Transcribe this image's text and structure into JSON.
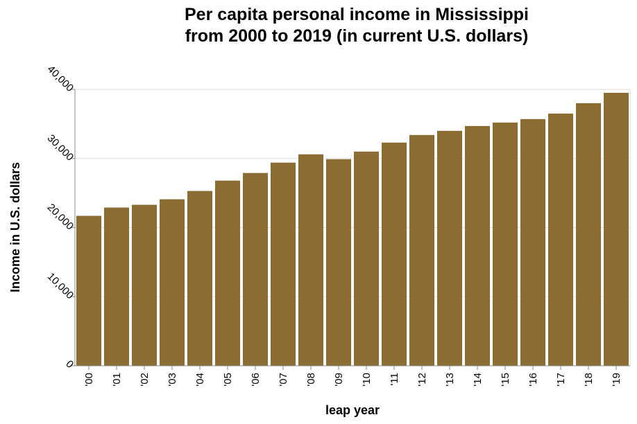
{
  "chart_data": {
    "type": "bar",
    "title": [
      "Per capita personal income in Mississippi",
      "from 2000 to 2019 (in current U.S. dollars)"
    ],
    "xlabel": "leap year",
    "ylabel": "Income in U.S. dollars",
    "categories": [
      "'00",
      "'01",
      "'02",
      "'03",
      "'04",
      "'05",
      "'06",
      "'07",
      "'08",
      "'09",
      "'10",
      "'11",
      "'12",
      "'13",
      "'14",
      "'15",
      "'16",
      "'17",
      "'18",
      "'19"
    ],
    "values": [
      21700,
      22900,
      23300,
      24100,
      25300,
      26800,
      27900,
      29400,
      30600,
      29900,
      31000,
      32300,
      33400,
      34000,
      34700,
      35200,
      35700,
      36500,
      38000,
      39500
    ],
    "ylim": [
      0,
      40000
    ],
    "yticks": [
      0,
      10000,
      20000,
      30000,
      40000
    ],
    "ytick_labels": [
      "0",
      "10,000",
      "20,000",
      "30,000",
      "40,000"
    ],
    "grid": true,
    "bar_color": "#8b6d33"
  }
}
